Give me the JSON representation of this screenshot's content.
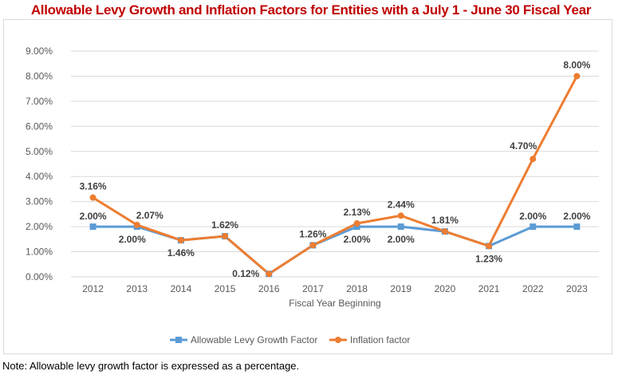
{
  "title": "Allowable Levy Growth and Inflation Factors for Entities with a July 1 - June 30 Fiscal Year",
  "note": "Note: Allowable levy growth factor is expressed as a percentage.",
  "chart_data": {
    "type": "line",
    "title": "Allowable Levy Growth and Inflation Factors for Entities with a July 1 - June 30 Fiscal Year",
    "xlabel": "Fiscal Year Beginning",
    "ylabel": "",
    "categories": [
      "2012",
      "2013",
      "2014",
      "2015",
      "2016",
      "2017",
      "2018",
      "2019",
      "2020",
      "2021",
      "2022",
      "2023"
    ],
    "ylim": [
      0,
      9
    ],
    "yticks": [
      "0.00%",
      "1.00%",
      "2.00%",
      "3.00%",
      "4.00%",
      "5.00%",
      "6.00%",
      "7.00%",
      "8.00%",
      "9.00%"
    ],
    "grid": true,
    "legend": "bottom",
    "series": [
      {
        "name": "Allowable Levy Growth Factor",
        "color": "#5b9bd5",
        "marker": "square",
        "values": [
          2.0,
          2.0,
          1.46,
          1.62,
          0.12,
          1.26,
          2.0,
          2.0,
          1.81,
          1.23,
          2.0,
          2.0
        ],
        "labels": [
          "2.00%",
          "2.00%",
          "",
          "",
          "",
          "",
          "2.00%",
          "2.00%",
          "",
          "",
          "2.00%",
          "2.00%"
        ]
      },
      {
        "name": "Inflation factor",
        "color": "#ed7d31",
        "marker": "circle",
        "values": [
          3.16,
          2.07,
          1.46,
          1.62,
          0.12,
          1.26,
          2.13,
          2.44,
          1.81,
          1.23,
          4.7,
          8.0
        ],
        "labels": [
          "3.16%",
          "2.07%",
          "1.46%",
          "1.62%",
          "0.12%",
          "1.26%",
          "2.13%",
          "2.44%",
          "1.81%",
          "1.23%",
          "4.70%",
          "8.00%"
        ]
      }
    ]
  }
}
